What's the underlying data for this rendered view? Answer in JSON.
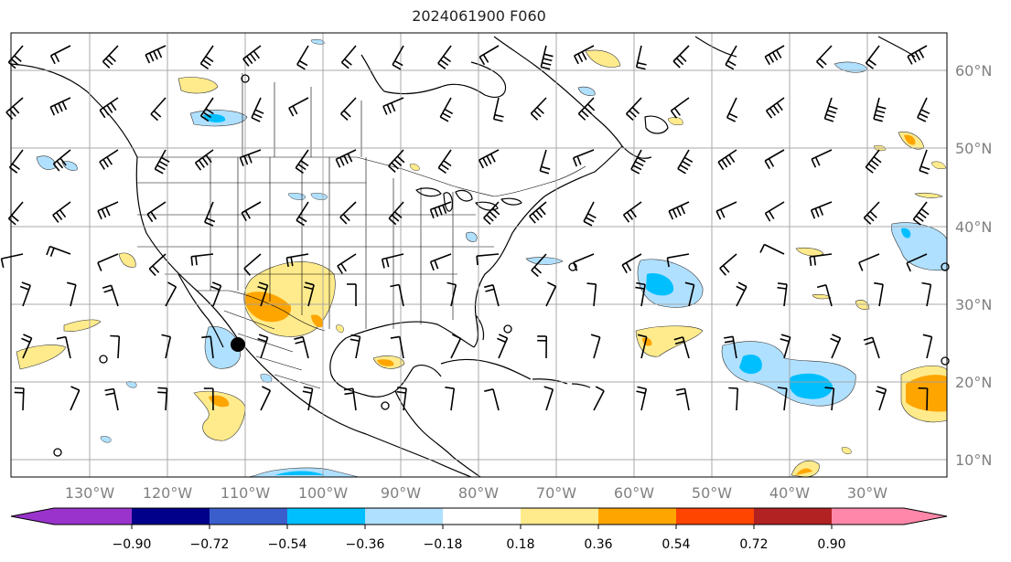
{
  "title": "2024061900 F060",
  "map": {
    "lon_labels": [
      "130°W",
      "120°W",
      "110°W",
      "100°W",
      "90°W",
      "80°W",
      "70°W",
      "60°W",
      "50°W",
      "40°W",
      "30°W"
    ],
    "lat_labels": [
      "60°N",
      "50°N",
      "40°N",
      "30°N",
      "20°N",
      "10°N"
    ],
    "grid_color": "#a0a0a0",
    "label_color": "#808080"
  },
  "colorbar": {
    "tick_labels": [
      "−0.90",
      "−0.72",
      "−0.54",
      "−0.36",
      "−0.18",
      "0.18",
      "0.36",
      "0.54",
      "0.72",
      "0.90"
    ],
    "colors": [
      "#9933cc",
      "#00008b",
      "#3a5fcd",
      "#00bfff",
      "#b0e0ff",
      "#ffffff",
      "#ffeb8c",
      "#ffa500",
      "#ff4500",
      "#b22222",
      "#ff88aa"
    ]
  }
}
